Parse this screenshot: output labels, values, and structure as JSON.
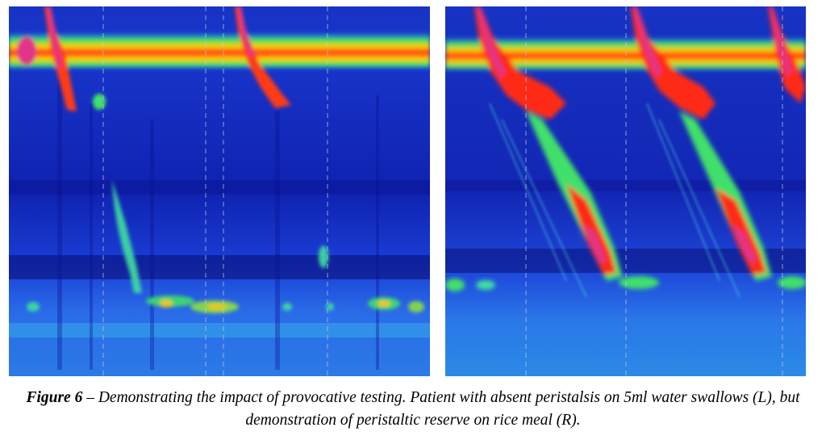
{
  "figure": {
    "label": "Figure 6",
    "caption": " – Demonstrating the impact of provocative testing. Patient with absent peristalsis on 5ml water swallows (L), but demonstration of peristaltic reserve on rice meal (R)."
  },
  "colors": {
    "background": "#1a2fd0",
    "deep": "#0b0f7a",
    "band_hot": "#ff2a1a",
    "band_warm": "#ffd200",
    "peak": "#e0358a",
    "green": "#3fe06a",
    "cyan": "#2fd8e0"
  },
  "panels": [
    {
      "id": "left",
      "name": "5ml water swallows"
    },
    {
      "id": "right",
      "name": "rice meal"
    }
  ]
}
